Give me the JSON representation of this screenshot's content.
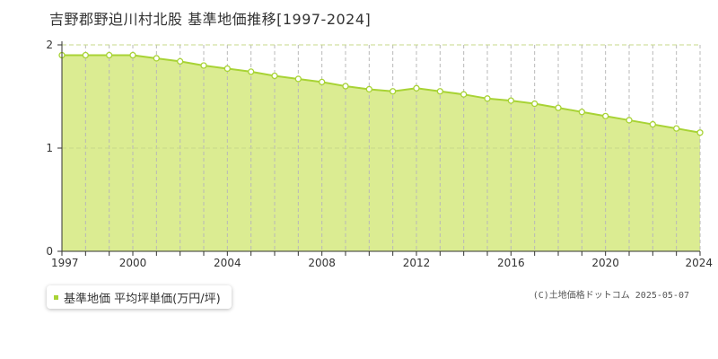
{
  "page": {
    "title": "吉野郡野迫川村北股 基準地価推移[1997-2024]",
    "copyright": "(C)土地価格ドットコム 2025-05-07"
  },
  "legend": {
    "label": "基準地価 平均坪単価(万円/坪)",
    "swatch_color": "#a8d335"
  },
  "colors": {
    "fill": "#dbec92",
    "line": "#a8d335",
    "grid_h": "#c7d98a",
    "grid_v": "#b8b8b8",
    "axis": "#333333",
    "point_fill": "#ffffff"
  },
  "chart_data": {
    "type": "area",
    "x": [
      1997,
      1998,
      1999,
      2000,
      2001,
      2002,
      2003,
      2004,
      2005,
      2006,
      2007,
      2008,
      2009,
      2010,
      2011,
      2012,
      2013,
      2014,
      2015,
      2016,
      2017,
      2018,
      2019,
      2020,
      2021,
      2022,
      2023,
      2024
    ],
    "series": [
      {
        "name": "基準地価 平均坪単価(万円/坪)",
        "values": [
          1.9,
          1.9,
          1.9,
          1.9,
          1.87,
          1.84,
          1.8,
          1.77,
          1.74,
          1.7,
          1.67,
          1.64,
          1.6,
          1.57,
          1.55,
          1.58,
          1.55,
          1.52,
          1.48,
          1.46,
          1.43,
          1.39,
          1.35,
          1.31,
          1.27,
          1.23,
          1.19,
          1.15
        ]
      }
    ],
    "x_ticks": [
      1997,
      2000,
      2004,
      2008,
      2012,
      2016,
      2020,
      2024
    ],
    "y_ticks": [
      0,
      1,
      2
    ],
    "xlim": [
      1997,
      2024
    ],
    "ylim": [
      0,
      2
    ],
    "grid": true,
    "legend_position": "bottom-left"
  }
}
